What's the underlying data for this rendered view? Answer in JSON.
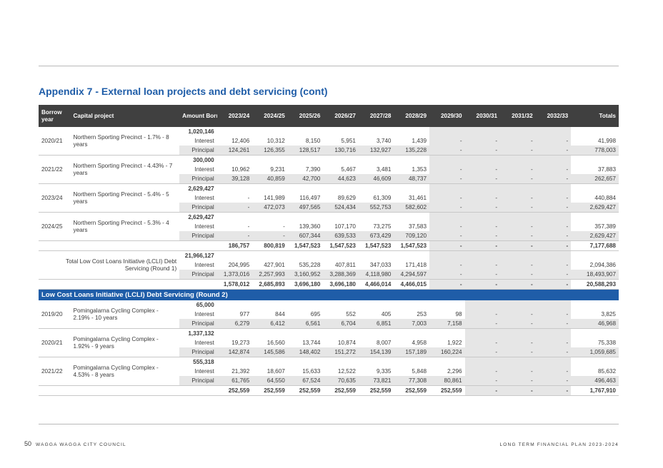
{
  "title": "Appendix 7 - External loan projects and debt servicing (cont)",
  "headers": {
    "borrow_year": "Borrow year",
    "capital_project": "Capital project",
    "amount_borrowed": "Amount Borrowed",
    "years": [
      "2023/24",
      "2024/25",
      "2025/26",
      "2026/27",
      "2027/28",
      "2028/29",
      "2029/30",
      "2030/31",
      "2031/32",
      "2032/33"
    ],
    "totals": "Totals"
  },
  "round1": {
    "projects": [
      {
        "year": "2020/21",
        "project": "Northern Sporting Precinct - 1.7% - 8 years",
        "amount": "1,020,146",
        "interest": [
          "12,406",
          "10,312",
          "8,150",
          "5,951",
          "3,740",
          "1,439",
          "-",
          "-",
          "-",
          "-",
          "41,998"
        ],
        "principal": [
          "124,261",
          "126,355",
          "128,517",
          "130,716",
          "132,927",
          "135,228",
          "-",
          "-",
          "-",
          "-",
          "778,003"
        ]
      },
      {
        "year": "2021/22",
        "project": "Northern Sporting Precinct - 4.43% - 7 years",
        "amount": "300,000",
        "interest": [
          "10,962",
          "9,231",
          "7,390",
          "5,467",
          "3,481",
          "1,353",
          "-",
          "-",
          "-",
          "-",
          "37,883"
        ],
        "principal": [
          "39,128",
          "40,859",
          "42,700",
          "44,623",
          "46,609",
          "48,737",
          "-",
          "-",
          "-",
          "-",
          "262,657"
        ]
      },
      {
        "year": "2023/24",
        "project": "Northern Sporting Precinct - 5.4% - 5 years",
        "amount": "2,629,427",
        "interest": [
          "-",
          "141,989",
          "116,497",
          "89,629",
          "61,309",
          "31,461",
          "-",
          "-",
          "-",
          "-",
          "440,884"
        ],
        "principal": [
          "-",
          "472,073",
          "497,565",
          "524,434",
          "552,753",
          "582,602",
          "-",
          "-",
          "-",
          "-",
          "2,629,427"
        ]
      },
      {
        "year": "2024/25",
        "project": "Northern Sporting Precinct - 5.3% - 4 years",
        "amount": "2,629,427",
        "interest": [
          "-",
          "-",
          "139,360",
          "107,170",
          "73,275",
          "37,583",
          "-",
          "-",
          "-",
          "-",
          "357,389"
        ],
        "principal": [
          "-",
          "-",
          "607,344",
          "639,533",
          "673,429",
          "709,120",
          "-",
          "-",
          "-",
          "-",
          "2,629,427"
        ],
        "subtotal": [
          "186,757",
          "800,819",
          "1,547,523",
          "1,547,523",
          "1,547,523",
          "1,547,523",
          "-",
          "-",
          "-",
          "-",
          "7,177,688"
        ]
      }
    ],
    "total": {
      "label": "Total Low Cost Loans Initiative (LCLI) Debt Servicing (Round 1)",
      "amount": "21,966,127",
      "interest": [
        "204,995",
        "427,901",
        "535,228",
        "407,811",
        "347,033",
        "171,418",
        "-",
        "-",
        "-",
        "-",
        "2,094,386"
      ],
      "principal": [
        "1,373,016",
        "2,257,993",
        "3,160,952",
        "3,288,369",
        "4,118,980",
        "4,294,597",
        "-",
        "-",
        "-",
        "-",
        "18,493,907"
      ],
      "sum": [
        "1,578,012",
        "2,685,893",
        "3,696,180",
        "3,696,180",
        "4,466,014",
        "4,466,015",
        "-",
        "-",
        "-",
        "-",
        "20,588,293"
      ]
    }
  },
  "round2": {
    "banner": "Low Cost Loans Initiative (LCLI) Debt Servicing (Round 2)",
    "projects": [
      {
        "year": "2019/20",
        "project": "Pomingalarna Cycling Complex - 2.19% - 10 years",
        "amount": "65,000",
        "interest": [
          "977",
          "844",
          "695",
          "552",
          "405",
          "253",
          "98",
          "-",
          "-",
          "-",
          "3,825"
        ],
        "principal": [
          "6,279",
          "6,412",
          "6,561",
          "6,704",
          "6,851",
          "7,003",
          "7,158",
          "-",
          "-",
          "-",
          "46,968"
        ]
      },
      {
        "year": "2020/21",
        "project": "Pomingalarna Cycling Complex - 1.92% - 9 years",
        "amount": "1,337,132",
        "interest": [
          "19,273",
          "16,560",
          "13,744",
          "10,874",
          "8,007",
          "4,958",
          "1,922",
          "-",
          "-",
          "-",
          "75,338"
        ],
        "principal": [
          "142,874",
          "145,586",
          "148,402",
          "151,272",
          "154,139",
          "157,189",
          "160,224",
          "-",
          "-",
          "-",
          "1,059,685"
        ]
      },
      {
        "year": "2021/22",
        "project": "Pomingalarna Cycling Complex - 4.53% - 8 years",
        "amount": "555,318",
        "interest": [
          "21,392",
          "18,607",
          "15,633",
          "12,522",
          "9,335",
          "5,848",
          "2,296",
          "-",
          "-",
          "-",
          "85,632"
        ],
        "principal": [
          "61,765",
          "64,550",
          "67,524",
          "70,635",
          "73,821",
          "77,308",
          "80,861",
          "-",
          "-",
          "-",
          "496,463"
        ],
        "subtotal": [
          "252,559",
          "252,559",
          "252,559",
          "252,559",
          "252,559",
          "252,559",
          "252,559",
          "-",
          "-",
          "-",
          "1,767,910"
        ]
      }
    ]
  },
  "row_labels": {
    "interest": "Interest",
    "principal": "Principal"
  },
  "footer": {
    "page_number": "50",
    "council": "WAGGA WAGGA CITY COUNCIL",
    "document": "LONG TERM FINANCIAL PLAN 2023-2024"
  }
}
